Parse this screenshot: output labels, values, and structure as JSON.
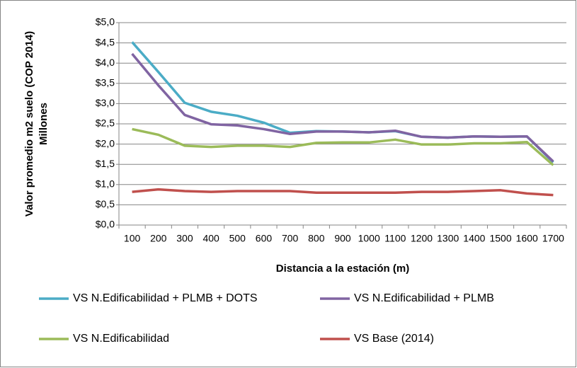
{
  "chart_data": {
    "type": "line",
    "y_axis_label": "Valor promedio m2 suelo (COP 2014)",
    "y_axis_unit": "Millones",
    "x_axis_label": "Distancia a la estación (m)",
    "categories": [
      "100",
      "200",
      "300",
      "400",
      "500",
      "600",
      "700",
      "800",
      "900",
      "1000",
      "1100",
      "1200",
      "1300",
      "1400",
      "1500",
      "1600",
      "1700"
    ],
    "series": [
      {
        "name": "VS N.Edificabilidad + PLMB + DOTS",
        "color": "#4bacc6",
        "values": [
          4.52,
          3.78,
          3.02,
          2.8,
          2.7,
          2.53,
          2.28,
          2.32,
          2.31,
          2.29,
          2.32,
          2.18,
          2.16,
          2.19,
          2.18,
          2.19,
          1.55
        ]
      },
      {
        "name": "VS N.Edificabilidad + PLMB",
        "color": "#8064a2",
        "values": [
          4.23,
          3.45,
          2.72,
          2.49,
          2.46,
          2.37,
          2.25,
          2.31,
          2.31,
          2.29,
          2.33,
          2.18,
          2.16,
          2.19,
          2.18,
          2.19,
          1.57
        ]
      },
      {
        "name": "VS N.Edificabilidad",
        "color": "#9bbb59",
        "values": [
          2.37,
          2.23,
          1.96,
          1.93,
          1.96,
          1.96,
          1.93,
          2.03,
          2.04,
          2.04,
          2.11,
          1.99,
          1.99,
          2.02,
          2.02,
          2.05,
          1.48
        ]
      },
      {
        "name": "VS Base (2014)",
        "color": "#c0504d",
        "values": [
          0.82,
          0.88,
          0.84,
          0.82,
          0.84,
          0.84,
          0.84,
          0.8,
          0.8,
          0.8,
          0.8,
          0.82,
          0.82,
          0.84,
          0.86,
          0.78,
          0.74
        ]
      }
    ],
    "ylim": [
      0,
      5
    ],
    "yticks": [
      {
        "value": 0,
        "label": "$0,0"
      },
      {
        "value": 0.5,
        "label": "$0,5"
      },
      {
        "value": 1,
        "label": "$1,0"
      },
      {
        "value": 1.5,
        "label": "$1,5"
      },
      {
        "value": 2,
        "label": "$2,0"
      },
      {
        "value": 2.5,
        "label": "$2,5"
      },
      {
        "value": 3,
        "label": "$3,0"
      },
      {
        "value": 3.5,
        "label": "$3,5"
      },
      {
        "value": 4,
        "label": "$4,0"
      },
      {
        "value": 4.5,
        "label": "$4,5"
      },
      {
        "value": 5,
        "label": "$5,0"
      }
    ],
    "grid": true,
    "legend": "bottom"
  }
}
